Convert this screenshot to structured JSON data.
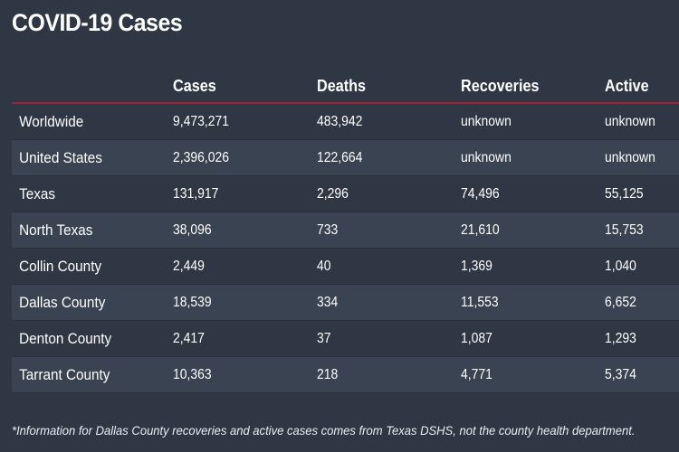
{
  "title": "COVID-19 Cases",
  "table": {
    "headers": [
      "",
      "Cases",
      "Deaths",
      "Recoveries",
      "Active"
    ],
    "rows": [
      [
        "Worldwide",
        "9,473,271",
        "483,942",
        "unknown",
        "unknown"
      ],
      [
        "United States",
        "2,396,026",
        "122,664",
        "unknown",
        "unknown"
      ],
      [
        "Texas",
        "131,917",
        "2,296",
        "74,496",
        "55,125"
      ],
      [
        "North Texas",
        "38,096",
        "733",
        "21,610",
        "15,753"
      ],
      [
        "Collin County",
        "2,449",
        "40",
        "1,369",
        "1,040"
      ],
      [
        "Dallas County",
        "18,539",
        "334",
        "11,553",
        "6,652"
      ],
      [
        "Denton County",
        "2,417",
        "37",
        "1,087",
        "1,293"
      ],
      [
        "Tarrant County",
        "10,363",
        "218",
        "4,771",
        "5,374"
      ]
    ]
  },
  "footnote": "*Information for Dallas County recoveries and active cases comes from Texas DSHS, not the county health department.",
  "colors": {
    "background": "#2f3744",
    "stripe": "#3a4351",
    "accent": "#a3202a",
    "text": "#ffffff"
  }
}
